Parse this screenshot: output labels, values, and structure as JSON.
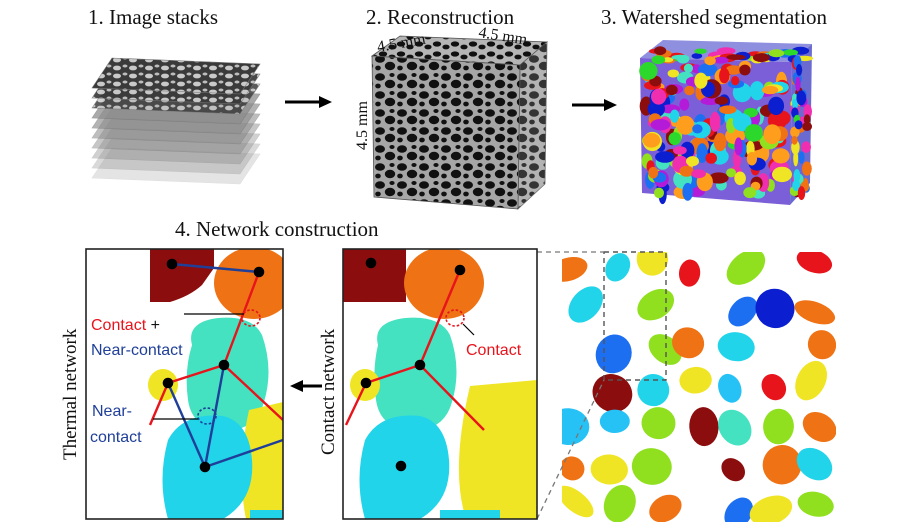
{
  "steps": {
    "image_stacks": "1. Image stacks",
    "reconstruction": "2. Reconstruction",
    "watershed": "3. Watershed segmentation",
    "network": "4. Network construction"
  },
  "dimensions": {
    "top_left": "4.5 mm",
    "top_right": "4.5 mm",
    "side": "4.5 mm"
  },
  "panels": {
    "thermal_network": "Thermal network",
    "contact_network": "Contact network",
    "thermal_contact_word": "Contact",
    "thermal_plus": " +",
    "near_contact_full": "Near-contact",
    "near_contact_line1": "Near-",
    "near_contact_line2": "contact",
    "contact_label": "Contact"
  },
  "colors": {
    "contact": "#e8141c",
    "near_contact": "#1f3f99",
    "node": "#000000",
    "arrow": "#000000"
  }
}
